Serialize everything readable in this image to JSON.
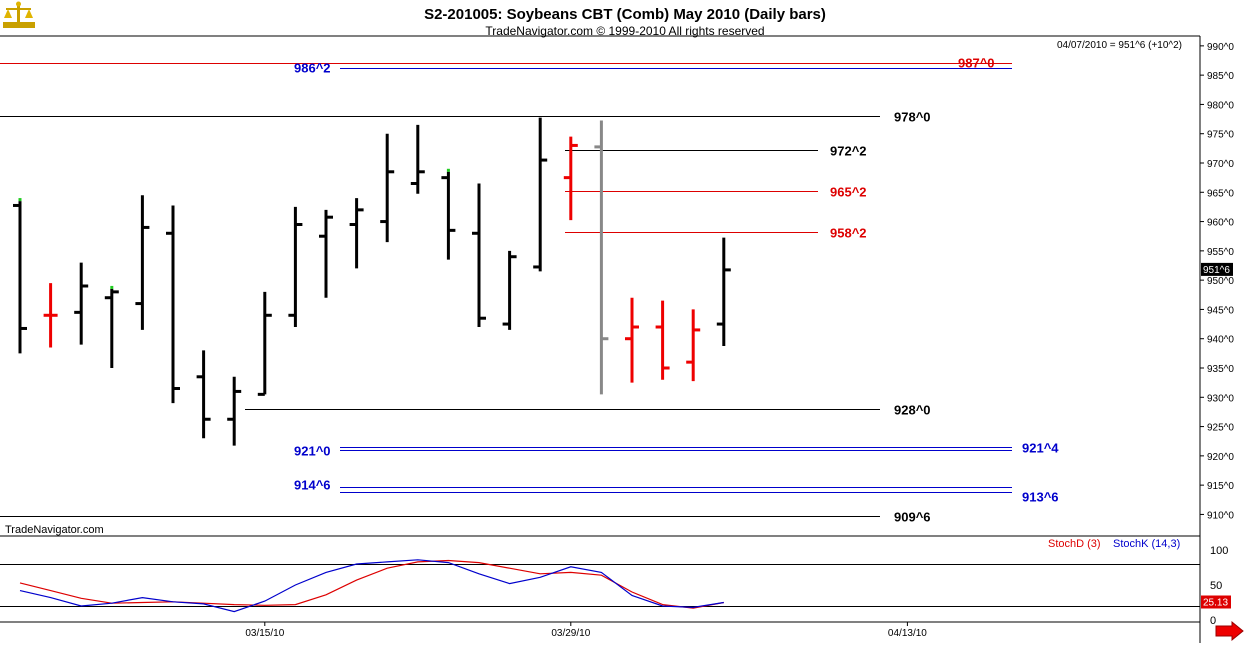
{
  "header": {
    "title": "S2-201005:  Soybeans CBT (Comb) May 2010  (Daily bars)",
    "copyright": "TradeNavigator.com © 1999-2010 All rights reserved",
    "status_readout": "04/07/2010 = 951^6 (+10^2)",
    "watermark": "TradeNavigator.com"
  },
  "colors": {
    "up_bar": "#000000",
    "down_bar": "#ee0000",
    "projection_bar": "#888888",
    "marker": "#22cc22",
    "stoch_d": "#dd0000",
    "stoch_k": "#0000cc",
    "level_black": "#000000",
    "level_red": "#dd0000",
    "level_blue": "#0000cc"
  },
  "icons": {
    "logo": "scales-logo-icon",
    "nav": "red-arrow-right-icon"
  },
  "chart_data": [
    {
      "type": "ohlc",
      "ylim": [
        907,
        991
      ],
      "yticks": [
        910,
        915,
        920,
        925,
        930,
        935,
        940,
        945,
        950,
        955,
        960,
        965,
        970,
        975,
        980,
        985,
        990
      ],
      "ytick_labels": [
        "910^0",
        "915^0",
        "920^0",
        "925^0",
        "930^0",
        "935^0",
        "940^0",
        "945^0",
        "950^0",
        "955^0",
        "960^0",
        "965^0",
        "970^0",
        "975^0",
        "980^0",
        "985^0",
        "990^0"
      ],
      "x_ticks": [
        {
          "label": "03/15/10",
          "index": 8
        },
        {
          "label": "03/29/10",
          "index": 18
        },
        {
          "label": "04/13/10",
          "index": 29
        }
      ],
      "last_price_label": "951^6",
      "last_price": 951.75,
      "bars": [
        {
          "i": 0,
          "o": 962.75,
          "h": 963.5,
          "l": 937.5,
          "c": 941.75,
          "color": "up",
          "marker": true
        },
        {
          "i": 1,
          "o": 944.0,
          "h": 949.5,
          "l": 938.5,
          "c": 944.0,
          "color": "down"
        },
        {
          "i": 2,
          "o": 944.5,
          "h": 953.0,
          "l": 939.0,
          "c": 949.0,
          "color": "up"
        },
        {
          "i": 3,
          "o": 947.0,
          "h": 948.5,
          "l": 935.0,
          "c": 948.0,
          "color": "up",
          "marker": true
        },
        {
          "i": 4,
          "o": 946.0,
          "h": 964.5,
          "l": 941.5,
          "c": 959.0,
          "color": "up"
        },
        {
          "i": 5,
          "o": 958.0,
          "h": 962.75,
          "l": 929.0,
          "c": 931.5,
          "color": "up"
        },
        {
          "i": 6,
          "o": 933.5,
          "h": 938.0,
          "l": 923.0,
          "c": 926.25,
          "color": "up"
        },
        {
          "i": 7,
          "o": 926.25,
          "h": 933.5,
          "l": 921.75,
          "c": 931.0,
          "color": "up"
        },
        {
          "i": 8,
          "o": 930.5,
          "h": 948.0,
          "l": 930.5,
          "c": 944.0,
          "color": "up"
        },
        {
          "i": 9,
          "o": 944.0,
          "h": 962.5,
          "l": 942.0,
          "c": 959.5,
          "color": "up"
        },
        {
          "i": 10,
          "o": 957.5,
          "h": 962.0,
          "l": 947.0,
          "c": 960.75,
          "color": "up"
        },
        {
          "i": 11,
          "o": 959.5,
          "h": 964.0,
          "l": 952.0,
          "c": 962.0,
          "color": "up"
        },
        {
          "i": 12,
          "o": 960.0,
          "h": 975.0,
          "l": 956.5,
          "c": 968.5,
          "color": "up"
        },
        {
          "i": 13,
          "o": 966.5,
          "h": 976.5,
          "l": 964.75,
          "c": 968.5,
          "color": "up"
        },
        {
          "i": 14,
          "o": 967.5,
          "h": 968.5,
          "l": 953.5,
          "c": 958.5,
          "color": "up",
          "marker": true
        },
        {
          "i": 15,
          "o": 958.0,
          "h": 966.5,
          "l": 942.0,
          "c": 943.5,
          "color": "up"
        },
        {
          "i": 16,
          "o": 942.5,
          "h": 955.0,
          "l": 941.5,
          "c": 954.0,
          "color": "up"
        },
        {
          "i": 17,
          "o": 952.25,
          "h": 977.75,
          "l": 951.5,
          "c": 970.5,
          "color": "up"
        },
        {
          "i": 18,
          "o": 967.5,
          "h": 974.5,
          "l": 960.25,
          "c": 973.0,
          "color": "down"
        },
        {
          "i": 19,
          "o": 972.75,
          "h": 977.25,
          "l": 930.5,
          "c": 940.0,
          "color": "projection"
        },
        {
          "i": 20,
          "o": 940.0,
          "h": 947.0,
          "l": 932.5,
          "c": 942.0,
          "color": "down"
        },
        {
          "i": 21,
          "o": 942.0,
          "h": 946.5,
          "l": 933.0,
          "c": 935.0,
          "color": "down"
        },
        {
          "i": 22,
          "o": 936.0,
          "h": 945.0,
          "l": 932.75,
          "c": 941.5,
          "color": "down"
        },
        {
          "i": 23,
          "o": 942.5,
          "h": 957.25,
          "l": 938.75,
          "c": 951.75,
          "color": "up"
        }
      ],
      "levels": [
        {
          "value": 987.0,
          "label": "987^0",
          "color": "red",
          "from": 0,
          "to": 1012
        },
        {
          "value": 986.25,
          "label": "986^2",
          "color": "blue",
          "from": 340,
          "to": 1012
        },
        {
          "value": 978.0,
          "label": "978^0",
          "color": "black",
          "from": 0,
          "to": 880
        },
        {
          "value": 972.25,
          "label": "972^2",
          "color": "black",
          "from": 565,
          "to": 818
        },
        {
          "value": 965.25,
          "label": "965^2",
          "color": "red",
          "from": 565,
          "to": 818
        },
        {
          "value": 958.25,
          "label": "958^2",
          "color": "red",
          "from": 565,
          "to": 818
        },
        {
          "value": 928.0,
          "label": "928^0",
          "color": "black",
          "from": 245,
          "to": 880
        },
        {
          "value": 921.5,
          "label": "921^4",
          "color": "blue",
          "from": 340,
          "to": 1012
        },
        {
          "value": 921.0,
          "label": "921^0",
          "color": "blue",
          "from": 340,
          "to": 1012
        },
        {
          "value": 914.75,
          "label": "914^6",
          "color": "blue",
          "from": 340,
          "to": 1012
        },
        {
          "value": 913.75,
          "label": "913^6",
          "color": "blue",
          "from": 340,
          "to": 1012
        },
        {
          "value": 909.75,
          "label": "909^6",
          "color": "black",
          "from": 0,
          "to": 880
        }
      ],
      "level_label_pos": [
        {
          "x": 958,
          "dy": -1,
          "anchor": "start"
        },
        {
          "x": 294,
          "dy": -1,
          "anchor": "start"
        },
        {
          "x": 894,
          "dy": 0,
          "anchor": "start"
        },
        {
          "x": 830,
          "dy": 0,
          "anchor": "start"
        },
        {
          "x": 830,
          "dy": 0,
          "anchor": "start"
        },
        {
          "x": 830,
          "dy": 0,
          "anchor": "start"
        },
        {
          "x": 894,
          "dy": 0,
          "anchor": "start"
        },
        {
          "x": 1022,
          "dy": 0,
          "anchor": "start"
        },
        {
          "x": 294,
          "dy": 0,
          "anchor": "start"
        },
        {
          "x": 294,
          "dy": -3,
          "anchor": "start"
        },
        {
          "x": 1022,
          "dy": 4,
          "anchor": "start"
        },
        {
          "x": 894,
          "dy": 0,
          "anchor": "start"
        }
      ]
    },
    {
      "type": "line",
      "ylim": [
        0,
        100
      ],
      "yticks": [
        0,
        50,
        100
      ],
      "ytick_labels": [
        "0",
        "50",
        "100"
      ],
      "reference_lines": [
        80,
        20
      ],
      "last_value_label": "25.13",
      "series": [
        {
          "name": "StochD (3)",
          "color": "red",
          "values": [
            53,
            42,
            31,
            24,
            25,
            26,
            24,
            22,
            21,
            22,
            36,
            57,
            74,
            83,
            85,
            82,
            74,
            66,
            68,
            64,
            40,
            22,
            17,
            25
          ]
        },
        {
          "name": "StochK (14,3)",
          "color": "blue",
          "values": [
            42,
            32,
            20,
            24,
            32,
            26,
            23,
            12,
            27,
            50,
            68,
            80,
            83,
            86,
            82,
            66,
            52,
            61,
            76,
            68,
            35,
            20,
            18,
            25
          ]
        }
      ]
    }
  ]
}
